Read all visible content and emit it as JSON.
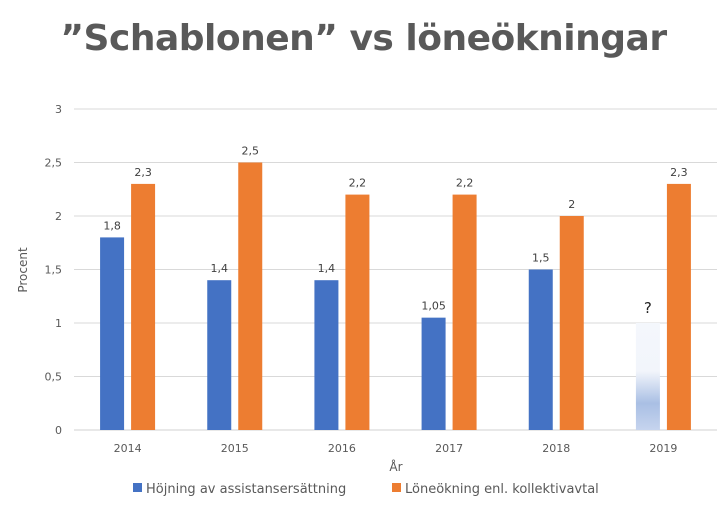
{
  "chart_data": {
    "type": "bar",
    "title": "”Schablonen” vs löneökningar",
    "xlabel": "År",
    "ylabel": "Procent",
    "ylim": [
      0,
      3
    ],
    "yticks": [
      "0",
      "0,5",
      "1",
      "1,5",
      "2",
      "2,5",
      "3"
    ],
    "ytick_values": [
      0,
      0.5,
      1,
      1.5,
      2,
      2.5,
      3
    ],
    "categories": [
      "2014",
      "2015",
      "2016",
      "2017",
      "2018",
      "2019"
    ],
    "grid": true,
    "legend_position": "bottom",
    "series": [
      {
        "name": "Höjning av assistansersättning",
        "color": "#4472C4",
        "values": [
          1.8,
          1.4,
          1.4,
          1.05,
          1.5,
          null
        ],
        "labels": [
          "1,8",
          "1,4",
          "1,4",
          "1,05",
          "1,5",
          "?"
        ],
        "placeholder_2019": {
          "value": 1,
          "label": "?",
          "style": "faded-gradient"
        }
      },
      {
        "name": "Löneökning enl. kollektivavtal",
        "color": "#ED7D31",
        "values": [
          2.3,
          2.5,
          2.2,
          2.2,
          2.0,
          2.3
        ],
        "labels": [
          "2,3",
          "2,5",
          "2,2",
          "2,2",
          "2",
          "2,3"
        ]
      }
    ]
  }
}
